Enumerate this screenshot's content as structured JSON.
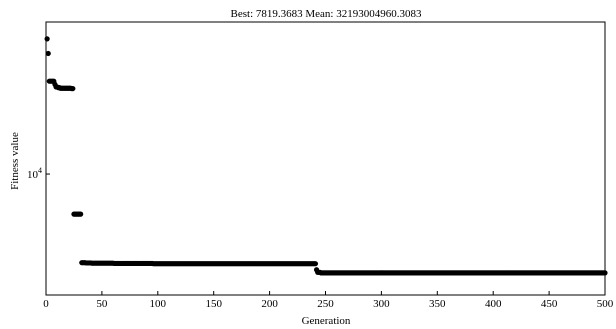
{
  "chart_data": {
    "type": "scatter",
    "title": "Best: 7819.3683 Mean: 32193004960.3083",
    "xlabel": "Generation",
    "ylabel": "Fitness value",
    "xlim": [
      0,
      500
    ],
    "ylim": [
      7400,
      14600
    ],
    "yscale": "log",
    "grid": false,
    "legend": "none",
    "x_ticks": [
      0,
      50,
      100,
      150,
      200,
      250,
      300,
      350,
      400,
      450,
      500
    ],
    "y_ticks": [
      {
        "value": 10000,
        "base": "10",
        "exponent": "4"
      }
    ],
    "marker_color": "#000000",
    "segments": [
      {
        "x_start": 1,
        "x_end": 1,
        "y": 14000
      },
      {
        "x_start": 2,
        "x_end": 2,
        "y": 13500
      },
      {
        "x_start": 3,
        "x_end": 7,
        "y": 12600
      },
      {
        "x_start": 8,
        "x_end": 8,
        "y": 12500
      },
      {
        "x_start": 9,
        "x_end": 10,
        "y": 12420
      },
      {
        "x_start": 11,
        "x_end": 12,
        "y": 12400
      },
      {
        "x_start": 13,
        "x_end": 22,
        "y": 12380
      },
      {
        "x_start": 23,
        "x_end": 24,
        "y": 12370
      },
      {
        "x_start": 25,
        "x_end": 31,
        "y": 9050
      },
      {
        "x_start": 32,
        "x_end": 35,
        "y": 8020
      },
      {
        "x_start": 36,
        "x_end": 40,
        "y": 8015
      },
      {
        "x_start": 41,
        "x_end": 60,
        "y": 8010
      },
      {
        "x_start": 61,
        "x_end": 95,
        "y": 8005
      },
      {
        "x_start": 96,
        "x_end": 241,
        "y": 8000
      },
      {
        "x_start": 242,
        "x_end": 242,
        "y": 7880
      },
      {
        "x_start": 243,
        "x_end": 245,
        "y": 7830
      },
      {
        "x_start": 246,
        "x_end": 500,
        "y": 7819.3683
      }
    ]
  }
}
